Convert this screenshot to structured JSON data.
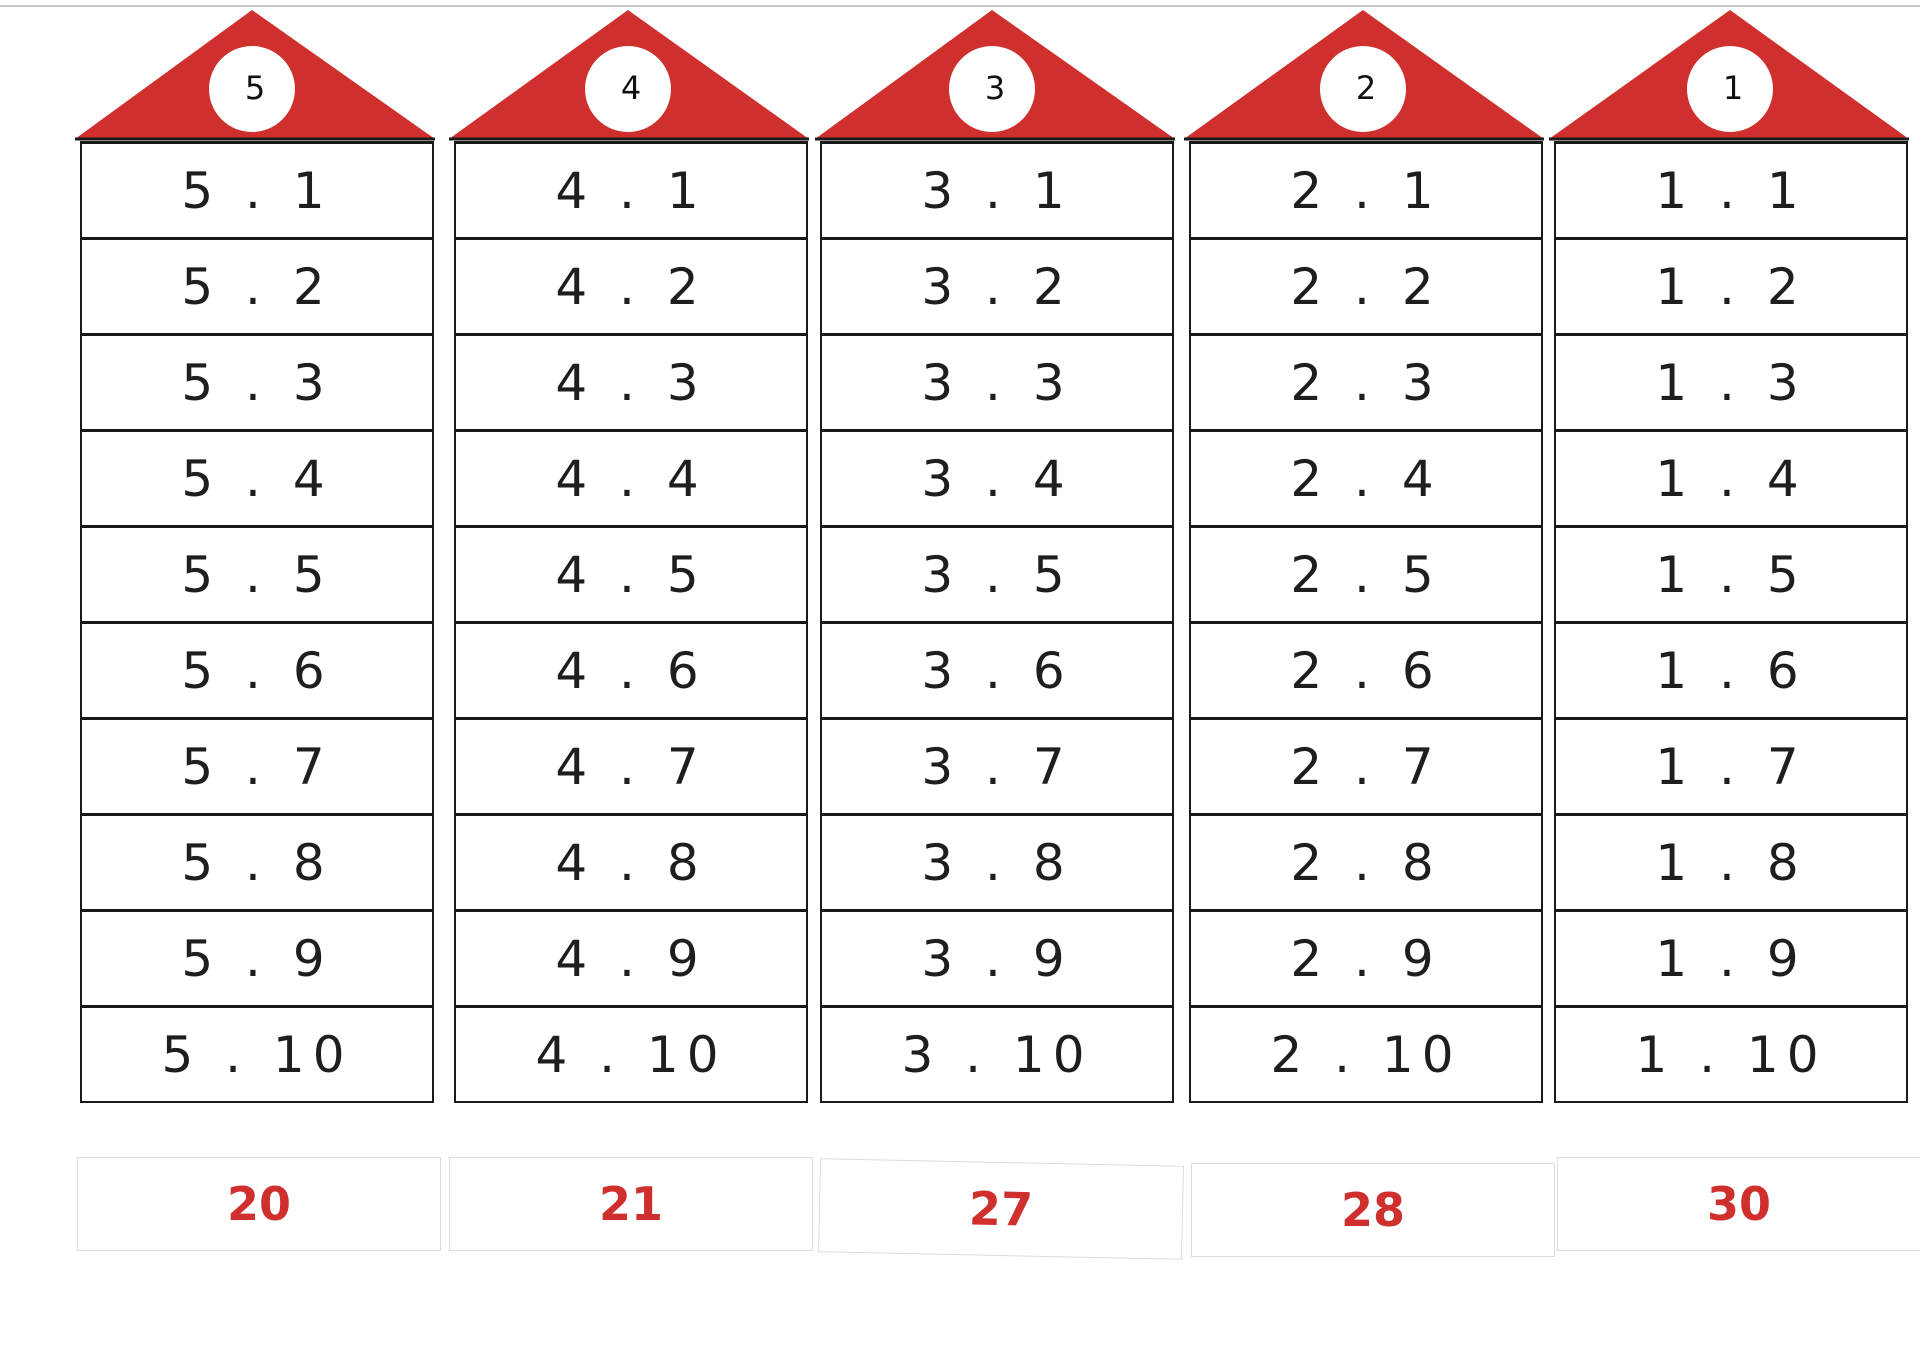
{
  "houses": [
    {
      "number": "5",
      "rows": [
        "5 . 1",
        "5 . 2",
        "5 . 3",
        "5 . 4",
        "5 . 5",
        "5 . 6",
        "5 . 7",
        "5 . 8",
        "5 . 9",
        "5 . 10"
      ],
      "score": "20"
    },
    {
      "number": "4",
      "rows": [
        "4 . 1",
        "4 . 2",
        "4 . 3",
        "4 . 4",
        "4 . 5",
        "4 . 6",
        "4 . 7",
        "4 . 8",
        "4 . 9",
        "4 . 10"
      ],
      "score": "21"
    },
    {
      "number": "3",
      "rows": [
        "3 . 1",
        "3 . 2",
        "3 . 3",
        "3 . 4",
        "3 . 5",
        "3 . 6",
        "3 . 7",
        "3 . 8",
        "3 . 9",
        "3 . 10"
      ],
      "score": "27"
    },
    {
      "number": "2",
      "rows": [
        "2 . 1",
        "2 . 2",
        "2 . 3",
        "2 . 4",
        "2 . 5",
        "2 . 6",
        "2 . 7",
        "2 . 8",
        "2 . 9",
        "2 . 10"
      ],
      "score": "28"
    },
    {
      "number": "1",
      "rows": [
        "1 . 1",
        "1 . 2",
        "1 . 3",
        "1 . 4",
        "1 . 5",
        "1 . 6",
        "1 . 7",
        "1 . 8",
        "1 . 9",
        "1 . 10"
      ],
      "score": "30"
    }
  ],
  "colors": {
    "roof": "#d0302d",
    "score_text": "#d0302d",
    "row_text": "#1e1e1e"
  }
}
